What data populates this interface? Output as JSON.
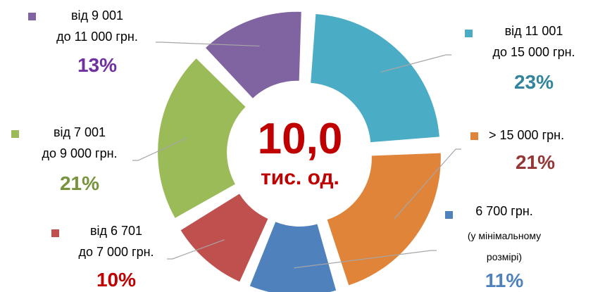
{
  "chart_data": {
    "type": "pie",
    "variant": "donut-exploded",
    "center_value": "10,0",
    "center_unit": "тис. од.",
    "center_color": "#C00000",
    "slices": [
      {
        "label_lines": [
          "від 11 001",
          "до 15 000 грн."
        ],
        "percent_label": "23%",
        "value": 23,
        "color": "#4BACC6",
        "label_color": "#31849B"
      },
      {
        "label_lines": [
          "> 15 000 грн."
        ],
        "percent_label": "21%",
        "value": 21,
        "color": "#E0843A",
        "label_color": "#953735"
      },
      {
        "label_lines": [
          "6 700 грн.",
          "(у мінімальному",
          "розмірі)"
        ],
        "percent_label": "11%",
        "value": 11,
        "color": "#4F81BD",
        "label_color": "#4F81BD"
      },
      {
        "label_lines": [
          "від 6 701",
          "до 7 000 грн."
        ],
        "percent_label": "10%",
        "value": 10,
        "color": "#C0504D",
        "label_color": "#C00000"
      },
      {
        "label_lines": [
          "від 7 001",
          "до 9 000 грн."
        ],
        "percent_label": "21%",
        "value": 21,
        "color": "#9BBB59",
        "label_color": "#77933C"
      },
      {
        "label_lines": [
          "від 9 001",
          "до 11 000 грн."
        ],
        "percent_label": "13%",
        "value": 13,
        "color": "#8064A2",
        "label_color": "#7030A0"
      }
    ]
  }
}
